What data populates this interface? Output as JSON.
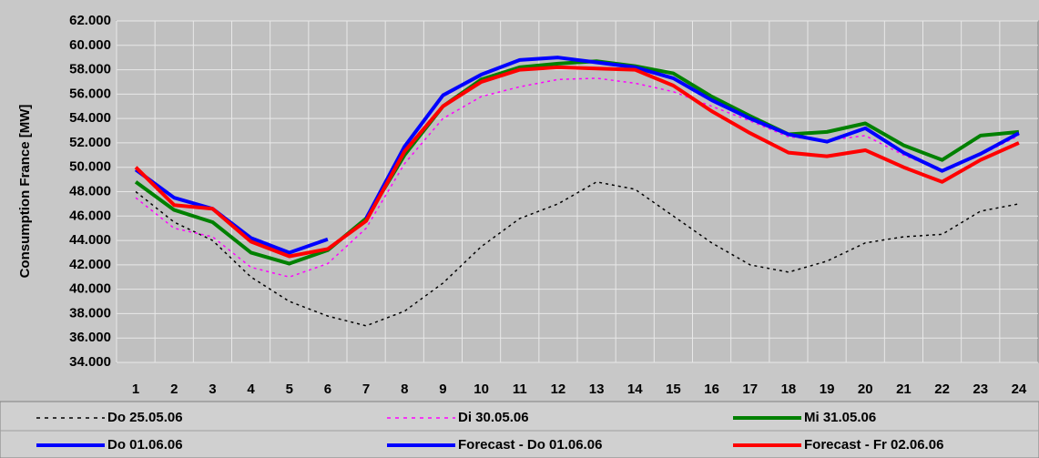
{
  "chart_data": {
    "type": "line",
    "y_label": "Consumption France [MW]",
    "categories": [
      "1",
      "2",
      "3",
      "4",
      "5",
      "6",
      "7",
      "8",
      "9",
      "10",
      "11",
      "12",
      "13",
      "14",
      "15",
      "16",
      "17",
      "18",
      "19",
      "20",
      "21",
      "22",
      "23",
      "24"
    ],
    "ylim": [
      34000,
      62000
    ],
    "yticks": [
      {
        "value": 34000,
        "label": "34.000"
      },
      {
        "value": 36000,
        "label": "36.000"
      },
      {
        "value": 38000,
        "label": "38.000"
      },
      {
        "value": 40000,
        "label": "40.000"
      },
      {
        "value": 42000,
        "label": "42.000"
      },
      {
        "value": 44000,
        "label": "44.000"
      },
      {
        "value": 46000,
        "label": "46.000"
      },
      {
        "value": 48000,
        "label": "48.000"
      },
      {
        "value": 50000,
        "label": "50.000"
      },
      {
        "value": 52000,
        "label": "52.000"
      },
      {
        "value": 54000,
        "label": "54.000"
      },
      {
        "value": 56000,
        "label": "56.000"
      },
      {
        "value": 58000,
        "label": "58.000"
      },
      {
        "value": 60000,
        "label": "60.000"
      },
      {
        "value": 62000,
        "label": "62.000"
      }
    ],
    "grid": true,
    "legend": "bottom",
    "series": [
      {
        "name": "Do 25.05.06",
        "color": "#000000",
        "dotted": true,
        "values": [
          48000,
          45500,
          44000,
          41000,
          39000,
          37800,
          37000,
          38200,
          40500,
          43500,
          45800,
          47000,
          48800,
          48200,
          46000,
          43800,
          42000,
          41400,
          42300,
          43800,
          44300,
          44500,
          46400,
          47000
        ]
      },
      {
        "name": "Di 30.05.06",
        "color": "#ff00ff",
        "dotted": true,
        "values": [
          47500,
          45000,
          44300,
          41800,
          41000,
          42100,
          45000,
          50300,
          54000,
          55800,
          56600,
          57200,
          57300,
          56900,
          56200,
          55000,
          53800,
          52500,
          52200,
          52600,
          51000,
          49700,
          51000,
          52600
        ]
      },
      {
        "name": "Mi 31.05.06",
        "color": "#008000",
        "dotted": false,
        "values": [
          48800,
          46500,
          45500,
          43000,
          42100,
          43200,
          45800,
          51000,
          55000,
          57200,
          58200,
          58500,
          58700,
          58300,
          57700,
          55800,
          54200,
          52700,
          52900,
          53600,
          51800,
          50600,
          52600,
          52900
        ]
      },
      {
        "name": "Do 01.06.06",
        "color": "#0000ff",
        "dotted": false,
        "values": [
          49800,
          47500,
          46600,
          44200,
          43000,
          44100,
          null,
          null,
          null,
          null,
          null,
          null,
          null,
          null,
          null,
          null,
          null,
          null,
          null,
          null,
          null,
          null,
          null,
          null
        ]
      },
      {
        "name": "Forecast - Do 01.06.06",
        "color": "#0000ff",
        "dotted": false,
        "values": [
          null,
          null,
          null,
          null,
          null,
          null,
          45800,
          51700,
          55900,
          57600,
          58800,
          59000,
          58600,
          58200,
          57300,
          55500,
          54000,
          52700,
          52100,
          53200,
          51200,
          49700,
          51100,
          52800
        ]
      },
      {
        "name": "Forecast - Fr 02.06.06",
        "color": "#ff0000",
        "dotted": false,
        "values": [
          50000,
          46900,
          46600,
          43900,
          42700,
          43300,
          45600,
          51300,
          55000,
          57000,
          58000,
          58200,
          58100,
          58000,
          56700,
          54600,
          52800,
          51200,
          50900,
          51400,
          50000,
          48800,
          50600,
          52000
        ]
      }
    ]
  }
}
